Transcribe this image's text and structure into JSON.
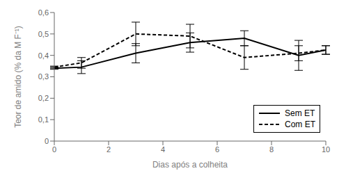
{
  "chart_data": {
    "type": "line",
    "x": [
      0,
      1,
      3,
      5,
      7,
      9,
      10
    ],
    "series": [
      {
        "name": "Sem ET",
        "color": "#000000",
        "line_style": "solid",
        "values": [
          0.34,
          0.345,
          0.41,
          0.46,
          0.48,
          0.4,
          0.425
        ],
        "yerr": [
          0.005,
          0.03,
          0.045,
          0.045,
          0.035,
          0.07,
          0.02
        ]
      },
      {
        "name": "Com ET",
        "color": "#000000",
        "line_style": "dashed",
        "values": [
          0.345,
          0.365,
          0.5,
          0.49,
          0.39,
          0.41,
          0.425
        ],
        "yerr": [
          0.005,
          0.025,
          0.055,
          0.055,
          0.055,
          0.035,
          0.02
        ]
      }
    ],
    "xlabel": "Dias após a colheita",
    "ylabel": "Teor de amido (% da M F⁻¹)",
    "xlim": [
      0,
      10
    ],
    "ylim": [
      0,
      0.6
    ],
    "xticks": [
      0,
      2,
      4,
      6,
      8,
      10
    ],
    "yticks": [
      0,
      {
        "value": 0.1,
        "label": "0,1"
      },
      {
        "value": 0.2,
        "label": "0,2"
      },
      {
        "value": 0.3,
        "label": "0,3"
      },
      {
        "value": 0.4,
        "label": "0,4"
      },
      {
        "value": 0.5,
        "label": "0,5"
      },
      {
        "value": 0.6,
        "label": "0,6"
      }
    ],
    "legend": "lower right",
    "grid": false
  }
}
